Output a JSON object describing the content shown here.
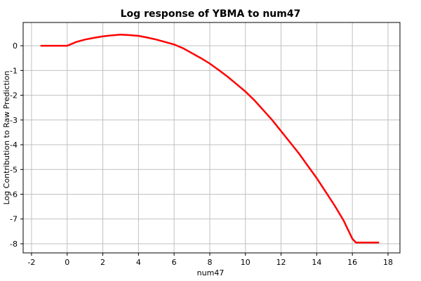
{
  "chart_data": {
    "type": "line",
    "title": "Log response of YBMA to num47",
    "x_label": "num47",
    "y_label": "Log Contribution to Raw Prediction",
    "x": [
      -1.5,
      -1,
      -0.5,
      0,
      0.5,
      1,
      1.5,
      2,
      2.5,
      3,
      3.5,
      4,
      4.5,
      5,
      5.5,
      6,
      6.5,
      7,
      7.5,
      8,
      8.5,
      9,
      9.5,
      10,
      10.5,
      11,
      11.5,
      12,
      12.5,
      13,
      13.5,
      14,
      14.5,
      15,
      15.5,
      16,
      16.2,
      16.5,
      17,
      17.5
    ],
    "series": [
      {
        "name": "YBMA",
        "color": "#ff0000",
        "values": [
          0,
          0,
          0,
          0,
          0.15,
          0.25,
          0.32,
          0.38,
          0.42,
          0.45,
          0.43,
          0.4,
          0.33,
          0.25,
          0.15,
          0.05,
          -0.1,
          -0.3,
          -0.5,
          -0.72,
          -0.98,
          -1.25,
          -1.55,
          -1.85,
          -2.2,
          -2.6,
          -3.0,
          -3.45,
          -3.9,
          -4.35,
          -4.85,
          -5.35,
          -5.9,
          -6.45,
          -7.05,
          -7.8,
          -7.95,
          -7.95,
          -7.95,
          -7.95
        ]
      }
    ],
    "xlim": [
      -2.47,
      18.67
    ],
    "ylim": [
      -8.37,
      0.94
    ],
    "xticks": [
      -2,
      0,
      2,
      4,
      6,
      8,
      10,
      12,
      14,
      16,
      18
    ],
    "yticks": [
      -8,
      -7,
      -6,
      -5,
      -4,
      -3,
      -2,
      -1,
      0
    ],
    "grid": true
  }
}
